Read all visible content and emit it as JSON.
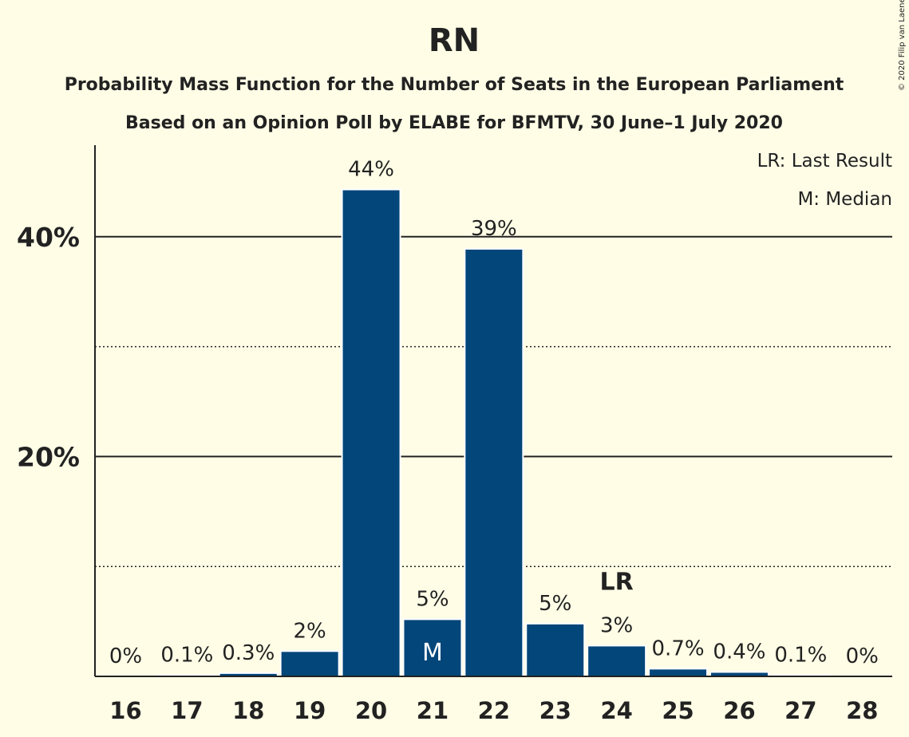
{
  "copyright": "© 2020 Filip van Laenen",
  "legend": {
    "last_result": "LR: Last Result",
    "median": "M: Median"
  },
  "colors": {
    "background": "#fffde6",
    "bar": "#02467a",
    "text": "#222222"
  },
  "chart_data": {
    "type": "bar",
    "title": "RN",
    "subtitle_lines": [
      "Probability Mass Function for the Number of Seats in the European Parliament",
      "Based on an Opinion Poll by ELABE for BFMTV, 30 June–1 July 2020"
    ],
    "categories": [
      "16",
      "17",
      "18",
      "19",
      "20",
      "21",
      "22",
      "23",
      "24",
      "25",
      "26",
      "27",
      "28"
    ],
    "values": [
      0,
      0.1,
      0.3,
      2.3,
      44.3,
      5.2,
      38.9,
      4.8,
      2.8,
      0.7,
      0.4,
      0.1,
      0
    ],
    "data_labels": [
      "0%",
      "0.1%",
      "0.3%",
      "2%",
      "44%",
      "5%",
      "39%",
      "5%",
      "3%",
      "0.7%",
      "0.4%",
      "0.1%",
      "0%"
    ],
    "y_ticks": [
      {
        "value": 20,
        "label": "20%"
      },
      {
        "value": 40,
        "label": "40%"
      }
    ],
    "minor_gridlines": [
      10,
      30
    ],
    "ylim": [
      0,
      48
    ],
    "median": {
      "category": "21",
      "marker": "M"
    },
    "last_result": {
      "category": "24",
      "marker": "LR"
    },
    "legend_position": "top-right",
    "grid": true
  }
}
